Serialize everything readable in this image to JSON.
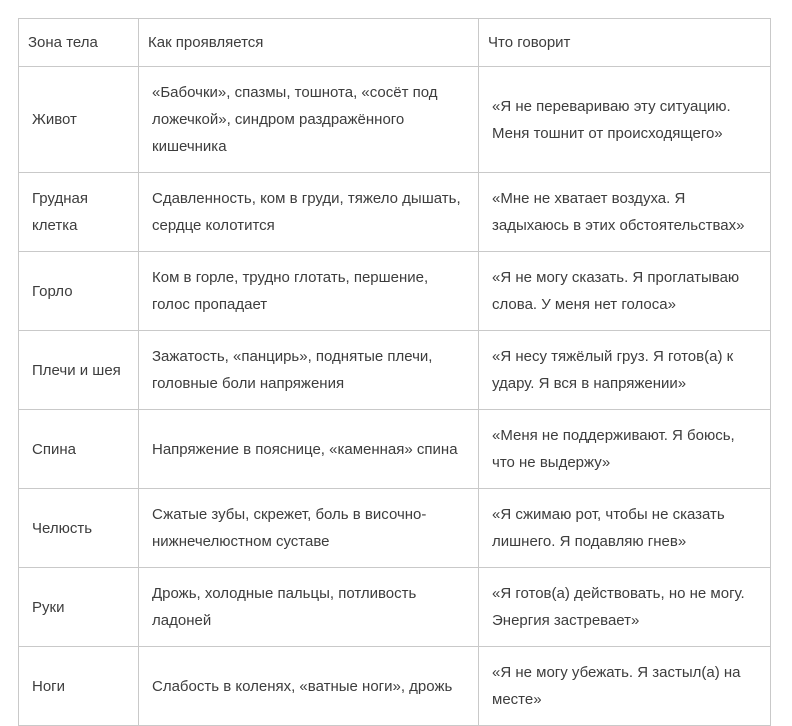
{
  "table": {
    "headers": [
      "Зона тела",
      "Как проявляется",
      "Что говорит"
    ],
    "rows": [
      {
        "zone": "Живот",
        "manifestation": "«Бабочки», спазмы, тошнота, «сосёт под ложечкой», синдром раздражённого кишечника",
        "meaning": "«Я не перевариваю эту ситуацию. Меня тошнит от происходящего»"
      },
      {
        "zone": "Грудная клетка",
        "manifestation": "Сдавленность, ком в груди, тяжело дышать, сердце колотится",
        "meaning": "«Мне не хватает воздуха. Я задыхаюсь в этих обстоятельствах»"
      },
      {
        "zone": "Горло",
        "manifestation": "Ком в горле, трудно глотать, першение, голос пропадает",
        "meaning": "«Я не могу сказать. Я проглатываю слова. У меня нет голоса»"
      },
      {
        "zone": "Плечи и шея",
        "manifestation": "Зажатость, «панцирь», поднятые плечи, головные боли напряжения",
        "meaning": "«Я несу тяжёлый груз. Я готов(а) к удару. Я вся в напряжении»"
      },
      {
        "zone": "Спина",
        "manifestation": "Напряжение в пояснице, «каменная» спина",
        "meaning": "«Меня не поддерживают. Я боюсь, что не выдержу»"
      },
      {
        "zone": "Челюсть",
        "manifestation": "Сжатые зубы, скрежет, боль в височно-нижнечелюстном суставе",
        "meaning": "«Я сжимаю рот, чтобы не сказать лишнего. Я подавляю гнев»"
      },
      {
        "zone": "Руки",
        "manifestation": "Дрожь, холодные пальцы, потливость ладоней",
        "meaning": "«Я готов(а) действовать, но не могу. Энергия застревает»"
      },
      {
        "zone": "Ноги",
        "manifestation": "Слабость в коленях, «ватные ноги», дрожь",
        "meaning": "«Я не могу убежать. Я застыл(а) на месте»"
      }
    ]
  }
}
